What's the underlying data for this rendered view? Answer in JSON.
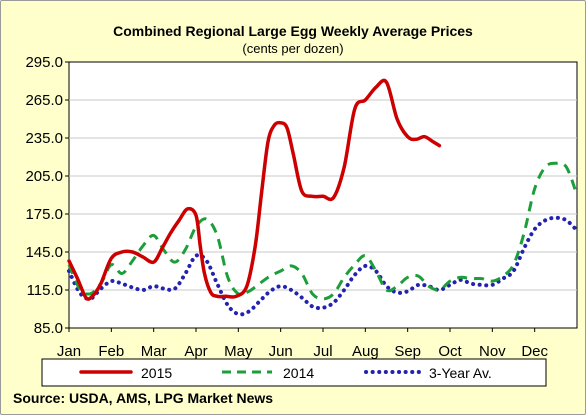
{
  "chart_data": {
    "type": "line",
    "title": "Combined Regional Large Egg Weekly Average Prices",
    "subtitle": "(cents per dozen)",
    "xlabel": "",
    "ylabel": "",
    "x_ticks": [
      "Jan",
      "Feb",
      "Mar",
      "Apr",
      "May",
      "Jun",
      "Jul",
      "Aug",
      "Sep",
      "Oct",
      "Nov",
      "Dec"
    ],
    "y_ticks": [
      "85.0",
      "115.0",
      "145.0",
      "175.0",
      "205.0",
      "235.0",
      "265.0",
      "295.0"
    ],
    "ylim": [
      85,
      295
    ],
    "x_unit": "month (1 = Jan)",
    "xlim": [
      1,
      13
    ],
    "grid": "horizontal",
    "legend_position": "bottom",
    "source": "Source: USDA, AMS, LPG  Market News",
    "series": [
      {
        "name": "2015",
        "color": "#cc0000",
        "style": "solid",
        "x": [
          1.0,
          1.2,
          1.4,
          1.55,
          1.75,
          2.0,
          2.25,
          2.5,
          2.75,
          3.0,
          3.2,
          3.4,
          3.6,
          3.8,
          4.0,
          4.1,
          4.2,
          4.35,
          4.5,
          4.7,
          4.95,
          5.2,
          5.4,
          5.55,
          5.7,
          5.85,
          6.0,
          6.15,
          6.3,
          6.5,
          6.75,
          7.0,
          7.25,
          7.5,
          7.75,
          8.0,
          8.25,
          8.5,
          8.75,
          9.0,
          9.2,
          9.4,
          9.6,
          9.75
        ],
        "y": [
          138,
          124,
          109,
          110,
          120,
          140,
          145,
          145,
          141,
          137,
          148,
          160,
          170,
          179,
          174,
          150,
          128,
          113,
          110,
          110,
          110,
          118,
          150,
          192,
          232,
          245,
          247,
          243,
          222,
          193,
          189,
          189,
          188,
          212,
          258,
          265,
          275,
          279,
          250,
          236,
          234,
          236,
          232,
          229
        ]
      },
      {
        "name": "2014",
        "color": "#1e9e3a",
        "style": "dashed",
        "x": [
          1.0,
          1.25,
          1.5,
          1.75,
          2.0,
          2.25,
          2.5,
          2.75,
          3.0,
          3.25,
          3.5,
          3.75,
          4.0,
          4.25,
          4.5,
          4.75,
          5.0,
          5.25,
          5.5,
          5.75,
          6.0,
          6.25,
          6.5,
          6.75,
          7.0,
          7.25,
          7.5,
          7.75,
          8.0,
          8.25,
          8.5,
          8.75,
          9.0,
          9.25,
          9.5,
          9.75,
          10.0,
          10.25,
          10.5,
          10.75,
          11.0,
          11.25,
          11.5,
          11.75,
          12.0,
          12.25,
          12.5,
          12.75,
          13.0
        ],
        "y": [
          135,
          116,
          112,
          120,
          135,
          128,
          138,
          150,
          158,
          146,
          137,
          147,
          165,
          171,
          158,
          125,
          112,
          114,
          120,
          126,
          130,
          134,
          128,
          112,
          108,
          112,
          125,
          135,
          142,
          130,
          115,
          118,
          125,
          126,
          118,
          115,
          122,
          125,
          124,
          124,
          122,
          126,
          135,
          160,
          195,
          212,
          215,
          212,
          190
        ]
      },
      {
        "name": "3-Year Av.",
        "color": "#2323b0",
        "style": "dotted",
        "x": [
          1.0,
          1.25,
          1.5,
          1.75,
          2.0,
          2.25,
          2.5,
          2.75,
          3.0,
          3.25,
          3.5,
          3.75,
          4.0,
          4.25,
          4.5,
          4.75,
          5.0,
          5.25,
          5.5,
          5.75,
          6.0,
          6.25,
          6.5,
          6.75,
          7.0,
          7.25,
          7.5,
          7.75,
          8.0,
          8.25,
          8.5,
          8.75,
          9.0,
          9.25,
          9.5,
          9.75,
          10.0,
          10.25,
          10.5,
          10.75,
          11.0,
          11.25,
          11.5,
          11.75,
          12.0,
          12.25,
          12.5,
          12.75,
          13.0
        ],
        "y": [
          130,
          113,
          108,
          116,
          122,
          120,
          117,
          115,
          118,
          116,
          116,
          128,
          142,
          138,
          120,
          103,
          96,
          98,
          106,
          114,
          118,
          115,
          109,
          102,
          101,
          105,
          115,
          127,
          134,
          130,
          118,
          113,
          114,
          119,
          118,
          115,
          119,
          123,
          120,
          119,
          119,
          124,
          130,
          148,
          163,
          170,
          172,
          170,
          162
        ]
      }
    ]
  }
}
